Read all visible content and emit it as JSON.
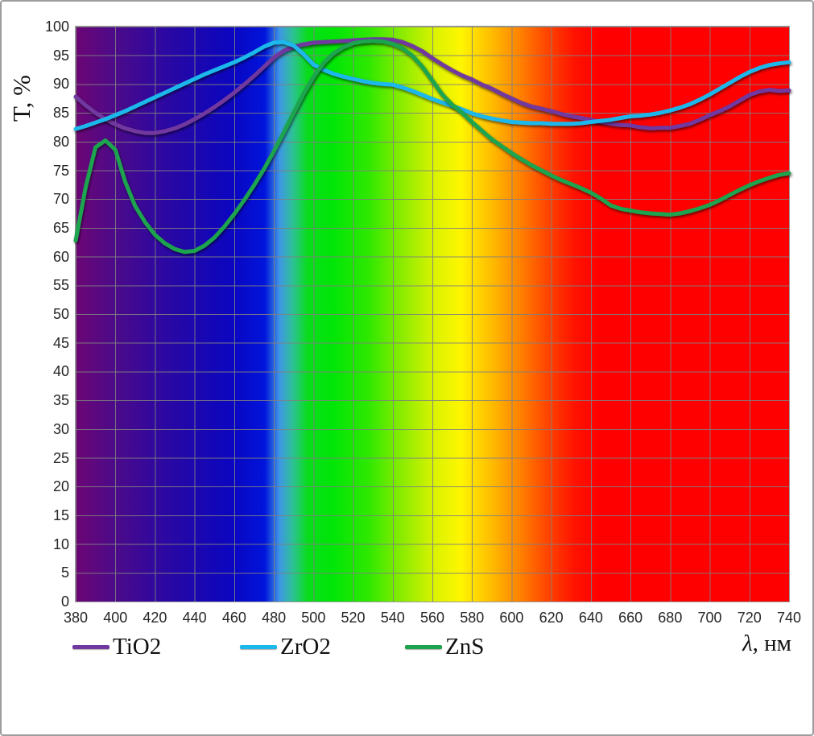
{
  "chart_data": {
    "type": "line",
    "ylabel": "T, %",
    "xlabel_symbol": "λ",
    "xlabel_unit": ", нм",
    "xlim": [
      380,
      740
    ],
    "ylim": [
      0,
      100
    ],
    "grid": true,
    "legend_position": "bottom",
    "background": "visible-spectrum-gradient",
    "x_ticks": [
      380,
      400,
      420,
      440,
      460,
      480,
      500,
      520,
      540,
      560,
      580,
      600,
      620,
      640,
      660,
      680,
      700,
      720,
      740
    ],
    "y_ticks": [
      0,
      5,
      10,
      15,
      20,
      25,
      30,
      35,
      40,
      45,
      50,
      55,
      60,
      65,
      70,
      75,
      80,
      85,
      90,
      95,
      100
    ],
    "x": [
      380,
      385,
      390,
      395,
      400,
      405,
      410,
      415,
      420,
      425,
      430,
      435,
      440,
      445,
      450,
      455,
      460,
      465,
      470,
      475,
      480,
      485,
      490,
      495,
      500,
      505,
      510,
      515,
      520,
      525,
      530,
      535,
      540,
      545,
      550,
      555,
      560,
      565,
      570,
      575,
      580,
      585,
      590,
      595,
      600,
      605,
      610,
      615,
      620,
      625,
      630,
      635,
      640,
      645,
      650,
      655,
      660,
      665,
      670,
      675,
      680,
      685,
      690,
      695,
      700,
      705,
      710,
      715,
      720,
      725,
      730,
      735,
      740
    ],
    "series": [
      {
        "name": "TiO2",
        "color": "#7138A0",
        "values": [
          87.8,
          86.3,
          85.0,
          83.9,
          83.0,
          82.3,
          81.8,
          81.5,
          81.5,
          81.8,
          82.3,
          83.0,
          83.9,
          84.9,
          86.0,
          87.2,
          88.5,
          89.9,
          91.4,
          93.0,
          94.6,
          95.8,
          96.5,
          96.9,
          97.2,
          97.3,
          97.4,
          97.5,
          97.6,
          97.7,
          97.8,
          97.8,
          97.7,
          97.3,
          96.6,
          95.7,
          94.5,
          93.4,
          92.4,
          91.5,
          90.8,
          89.9,
          89.2,
          88.3,
          87.5,
          86.7,
          86.1,
          85.7,
          85.3,
          84.8,
          84.4,
          84.1,
          83.8,
          83.4,
          83.1,
          82.9,
          82.8,
          82.5,
          82.3,
          82.4,
          82.4,
          82.7,
          83.1,
          83.8,
          84.6,
          85.3,
          86.1,
          87.1,
          88.1,
          88.7,
          89.0,
          88.8,
          88.9
        ]
      },
      {
        "name": "ZrO2",
        "color": "#1CB8EC",
        "values": [
          82.2,
          82.7,
          83.3,
          83.9,
          84.6,
          85.3,
          86.1,
          86.9,
          87.7,
          88.5,
          89.3,
          90.1,
          90.9,
          91.7,
          92.4,
          93.1,
          93.8,
          94.6,
          95.5,
          96.5,
          97.2,
          97.3,
          96.7,
          95.2,
          93.4,
          92.5,
          91.8,
          91.3,
          90.9,
          90.5,
          90.2,
          90.0,
          89.9,
          89.4,
          88.8,
          88.1,
          87.4,
          86.8,
          86.2,
          85.6,
          84.9,
          84.4,
          84.0,
          83.7,
          83.4,
          83.3,
          83.2,
          83.2,
          83.1,
          83.1,
          83.1,
          83.2,
          83.4,
          83.6,
          83.8,
          84.1,
          84.4,
          84.5,
          84.7,
          85.0,
          85.4,
          85.9,
          86.5,
          87.3,
          88.2,
          89.2,
          90.2,
          91.2,
          92.1,
          92.8,
          93.3,
          93.6,
          93.8
        ]
      },
      {
        "name": "ZnS",
        "color": "#1CA44F",
        "values": [
          62.8,
          72.0,
          79.0,
          80.2,
          78.6,
          73.0,
          68.8,
          66.0,
          63.8,
          62.3,
          61.3,
          60.8,
          61.0,
          61.9,
          63.3,
          65.2,
          67.4,
          69.8,
          72.4,
          75.2,
          78.3,
          81.6,
          85.0,
          88.3,
          91.2,
          93.6,
          95.3,
          96.4,
          97.1,
          97.4,
          97.5,
          97.4,
          97.0,
          96.2,
          94.9,
          93.0,
          90.6,
          88.2,
          86.4,
          85.0,
          83.4,
          81.9,
          80.4,
          79.2,
          78.0,
          76.9,
          75.9,
          75.0,
          74.1,
          73.3,
          72.6,
          71.9,
          71.1,
          70.1,
          68.9,
          68.3,
          68.0,
          67.7,
          67.5,
          67.4,
          67.3,
          67.5,
          67.9,
          68.4,
          69.0,
          69.8,
          70.7,
          71.6,
          72.4,
          73.1,
          73.7,
          74.2,
          74.5
        ]
      }
    ],
    "spectrum_stops": [
      {
        "pos": 0,
        "color": "#6C0675"
      },
      {
        "pos": 5.5,
        "color": "#4C0A89"
      },
      {
        "pos": 11,
        "color": "#32089D"
      },
      {
        "pos": 16.7,
        "color": "#1C07AE"
      },
      {
        "pos": 22,
        "color": "#0B06C1"
      },
      {
        "pos": 26.5,
        "color": "#0014DB"
      },
      {
        "pos": 28.6,
        "color": "#3E97E4"
      },
      {
        "pos": 30.5,
        "color": "#2DC292"
      },
      {
        "pos": 32.5,
        "color": "#09DC1C"
      },
      {
        "pos": 36,
        "color": "#00E607"
      },
      {
        "pos": 41,
        "color": "#2EE800"
      },
      {
        "pos": 45.8,
        "color": "#8CEC00"
      },
      {
        "pos": 50.5,
        "color": "#DDF300"
      },
      {
        "pos": 54,
        "color": "#FEF600"
      },
      {
        "pos": 58.3,
        "color": "#FFBC00"
      },
      {
        "pos": 62.5,
        "color": "#FF7E00"
      },
      {
        "pos": 66,
        "color": "#FF4600"
      },
      {
        "pos": 70,
        "color": "#FF1200"
      },
      {
        "pos": 73.5,
        "color": "#FF0000"
      },
      {
        "pos": 100,
        "color": "#FF0000"
      }
    ],
    "gridline_color": "#9b9b9b"
  }
}
